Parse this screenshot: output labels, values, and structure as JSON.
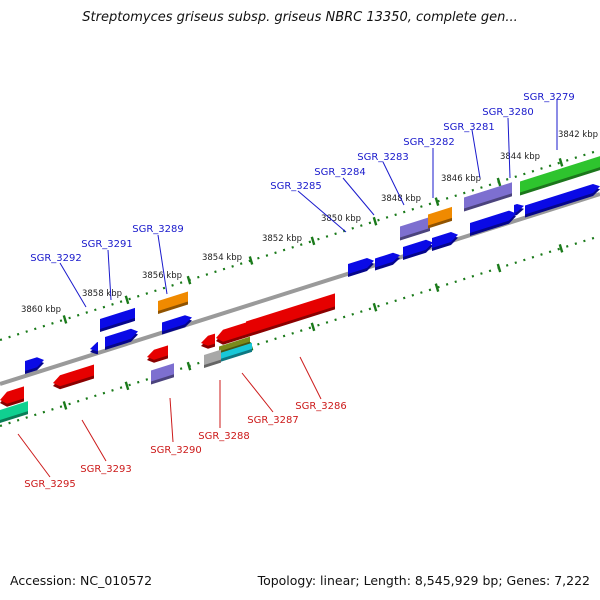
{
  "title": "Streptomyces griseus subsp. griseus NBRC 13350, complete gen...",
  "footer": {
    "accession": "Accession: NC_010572",
    "summary": "Topology: linear; Length: 8,545,929 bp; Genes: 7,222"
  },
  "colors": {
    "ruler_ticks": "#1a7a1a",
    "backbone": "#8a8a8a",
    "label_top_strand": "#1a1acc",
    "label_bottom_strand": "#cc1a1a",
    "gene_blue": "#0a0ae6",
    "gene_red": "#e60000",
    "gene_purple": "#7d6fd0",
    "gene_orange": "#f08a00",
    "gene_green": "#2ec42e",
    "gene_olive": "#7a8a1a",
    "gene_cyan": "#18c8d8",
    "gene_teal": "#10d090",
    "gene_gray": "#a8a8a8"
  },
  "ruler_labels": [
    "3842 kbp",
    "3844 kbp",
    "3846 kbp",
    "3848 kbp",
    "3850 kbp",
    "3852 kbp",
    "3854 kbp",
    "3856 kbp",
    "3858 kbp",
    "3860 kbp"
  ],
  "top_labels": [
    "SGR_3279",
    "SGR_3280",
    "SGR_3281",
    "SGR_3282",
    "SGR_3283",
    "SGR_3284",
    "SGR_3285",
    "SGR_3289",
    "SGR_3291",
    "SGR_3292"
  ],
  "bottom_labels": [
    "SGR_3286",
    "SGR_3287",
    "SGR_3288",
    "SGR_3290",
    "SGR_3293",
    "SGR_3295"
  ]
}
